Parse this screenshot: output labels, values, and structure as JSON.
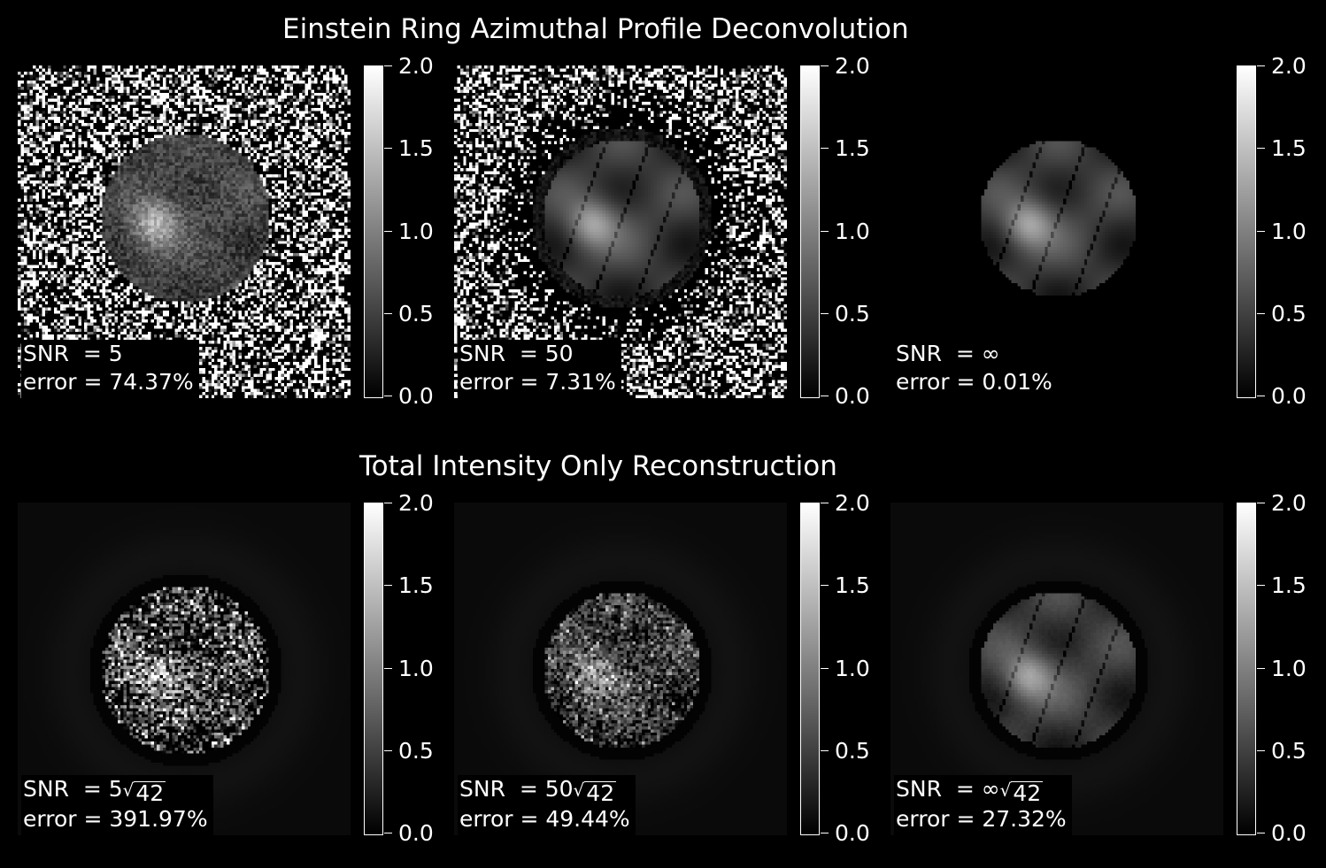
{
  "chart_data": [
    {
      "type": "heatmap",
      "title": "Einstein Ring Azimuthal Profile Deconvolution",
      "colormap": "gray",
      "colorbar_range": [
        0.0,
        2.0
      ],
      "colorbar_ticks": [
        "0.0",
        "0.5",
        "1.0",
        "1.5",
        "2.0"
      ],
      "panels": [
        {
          "snr_prefix": "SNR  = ",
          "snr": "5",
          "sqrt_factor": "",
          "error_text": "error = 74.37%",
          "error_pct": 74.37
        },
        {
          "snr_prefix": "SNR  = ",
          "snr": "50",
          "sqrt_factor": "",
          "error_text": "error = 7.31%",
          "error_pct": 7.31
        },
        {
          "snr_prefix": "SNR  = ",
          "snr": "∞",
          "sqrt_factor": "",
          "error_text": "error = 0.01%",
          "error_pct": 0.01
        }
      ]
    },
    {
      "type": "heatmap",
      "title": "Total Intensity Only Reconstruction",
      "colormap": "gray",
      "colorbar_range": [
        0.0,
        2.0
      ],
      "colorbar_ticks": [
        "0.0",
        "0.5",
        "1.0",
        "1.5",
        "2.0"
      ],
      "panels": [
        {
          "snr_prefix": "SNR  = ",
          "snr": "5",
          "sqrt_factor": "42",
          "error_text": "error = 391.97%",
          "error_pct": 391.97
        },
        {
          "snr_prefix": "SNR  = ",
          "snr": "50",
          "sqrt_factor": "42",
          "error_text": "error = 49.44%",
          "error_pct": 49.44
        },
        {
          "snr_prefix": "SNR  = ",
          "snr": "∞",
          "sqrt_factor": "42",
          "error_text": "error = 27.32%",
          "error_pct": 27.32
        }
      ]
    }
  ],
  "colors": {
    "background": "#000000",
    "text": "#ffffff"
  }
}
